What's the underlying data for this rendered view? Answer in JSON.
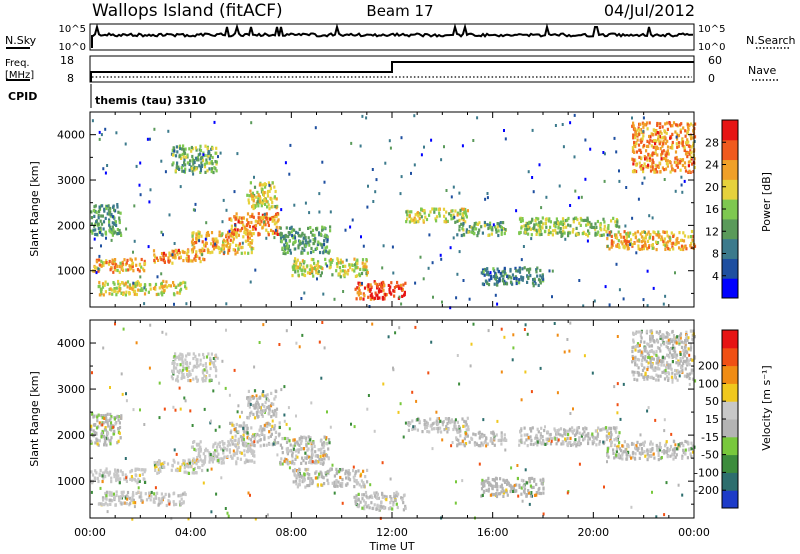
{
  "header": {
    "station": "Wallops Island (fitACF)",
    "beam": "Beam 17",
    "date": "04/Jul/2012"
  },
  "top_panels": {
    "nsky_label": "N.Sky",
    "nsky_ticks": [
      "10^5",
      "10^0"
    ],
    "nsearch_label": "N.Search",
    "nsearch_ticks": [
      "10^5",
      "10^0"
    ],
    "freq_label_1": "Freq.",
    "freq_label_2": "[MHz]",
    "freq_ticks": [
      "18",
      "8"
    ],
    "nave_label": "Nave",
    "nave_ticks": [
      "60",
      "0"
    ],
    "cpid_label": "CPID",
    "cpid_value": "themis (tau) 3310"
  },
  "colors": {
    "power_scale": [
      "#0000ff",
      "#1e4fa0",
      "#3c7a8c",
      "#5a9a5a",
      "#7ec850",
      "#e6d23c",
      "#f0a028",
      "#f05a1e",
      "#e61414"
    ],
    "velocity_scale": [
      "#1e3cc8",
      "#2d6e6e",
      "#3c8c3c",
      "#78c83c",
      "#b4b4b4",
      "#c8c8c8",
      "#f0c81e",
      "#f08c14",
      "#f05014",
      "#e61414"
    ]
  },
  "chart_data": [
    {
      "type": "heatmap",
      "name": "power",
      "ylabel": "Slant Range [km]",
      "yticks": [
        "1000",
        "2000",
        "3000",
        "4000"
      ],
      "ylim": [
        200,
        4500
      ],
      "xlim": [
        0,
        24
      ],
      "colorbar_label": "Power [dB]",
      "colorbar_ticks": [
        "4",
        "8",
        "12",
        "16",
        "20",
        "24",
        "28"
      ],
      "colorbar_range": [
        0,
        32
      ],
      "bands": [
        {
          "t0": 0.0,
          "t1": 2.2,
          "r0": 1000,
          "r1": 1300,
          "v": 22
        },
        {
          "t0": 0.3,
          "t1": 3.8,
          "r0": 500,
          "r1": 800,
          "v": 20
        },
        {
          "t0": 0.0,
          "t1": 1.2,
          "r0": 1800,
          "r1": 2500,
          "v": 12
        },
        {
          "t0": 2.5,
          "t1": 4.5,
          "r0": 1200,
          "r1": 1500,
          "v": 24
        },
        {
          "t0": 4.0,
          "t1": 6.5,
          "r0": 1400,
          "r1": 1900,
          "v": 22
        },
        {
          "t0": 5.5,
          "t1": 7.5,
          "r0": 1800,
          "r1": 2300,
          "v": 24
        },
        {
          "t0": 6.2,
          "t1": 7.4,
          "r0": 2400,
          "r1": 3000,
          "v": 18
        },
        {
          "t0": 3.2,
          "t1": 5.0,
          "r0": 3200,
          "r1": 3800,
          "v": 14
        },
        {
          "t0": 7.5,
          "t1": 9.5,
          "r0": 1400,
          "r1": 2000,
          "v": 12
        },
        {
          "t0": 8.0,
          "t1": 11.0,
          "r0": 900,
          "r1": 1300,
          "v": 18
        },
        {
          "t0": 10.5,
          "t1": 12.5,
          "r0": 400,
          "r1": 800,
          "v": 28
        },
        {
          "t0": 12.5,
          "t1": 15.0,
          "r0": 2100,
          "r1": 2400,
          "v": 18
        },
        {
          "t0": 14.5,
          "t1": 16.5,
          "r0": 1800,
          "r1": 2100,
          "v": 14
        },
        {
          "t0": 15.5,
          "t1": 18.0,
          "r0": 700,
          "r1": 1100,
          "v": 10
        },
        {
          "t0": 17.0,
          "t1": 21.0,
          "r0": 1800,
          "r1": 2200,
          "v": 16
        },
        {
          "t0": 20.5,
          "t1": 24.0,
          "r0": 1500,
          "r1": 1900,
          "v": 22
        },
        {
          "t0": 21.5,
          "t1": 24.0,
          "r0": 3200,
          "r1": 4300,
          "v": 24
        }
      ]
    },
    {
      "type": "heatmap",
      "name": "velocity",
      "ylabel": "Slant Range [km]",
      "yticks": [
        "1000",
        "2000",
        "3000",
        "4000"
      ],
      "ylim": [
        200,
        4500
      ],
      "xlim": [
        0,
        24
      ],
      "xticks": [
        "00:00",
        "04:00",
        "08:00",
        "12:00",
        "16:00",
        "20:00",
        "00:00"
      ],
      "xlabel": "Time UT",
      "colorbar_label": "Velocity [m s⁻¹]",
      "colorbar_ticks": [
        "-200",
        "-100",
        "-50",
        "-15",
        "15",
        "50",
        "100",
        "200"
      ],
      "colorbar_range": [
        -250,
        250
      ],
      "bands": [
        {
          "t0": 0.0,
          "t1": 2.2,
          "r0": 1000,
          "r1": 1300,
          "v": 30
        },
        {
          "t0": 0.3,
          "t1": 3.8,
          "r0": 500,
          "r1": 800,
          "v": 10
        },
        {
          "t0": 0.0,
          "t1": 1.2,
          "r0": 1800,
          "r1": 2500,
          "v": -40
        },
        {
          "t0": 2.5,
          "t1": 4.5,
          "r0": 1200,
          "r1": 1500,
          "v": 40
        },
        {
          "t0": 4.0,
          "t1": 6.5,
          "r0": 1400,
          "r1": 1900,
          "v": 20
        },
        {
          "t0": 5.5,
          "t1": 7.5,
          "r0": 1800,
          "r1": 2300,
          "v": 0
        },
        {
          "t0": 6.2,
          "t1": 7.4,
          "r0": 2400,
          "r1": 3000,
          "v": 0
        },
        {
          "t0": 3.2,
          "t1": 5.0,
          "r0": 3200,
          "r1": 3800,
          "v": 30
        },
        {
          "t0": 7.5,
          "t1": 9.5,
          "r0": 1400,
          "r1": 2000,
          "v": 0
        },
        {
          "t0": 8.0,
          "t1": 11.0,
          "r0": 900,
          "r1": 1300,
          "v": 0
        },
        {
          "t0": 10.5,
          "t1": 12.5,
          "r0": 400,
          "r1": 800,
          "v": 0
        },
        {
          "t0": 12.5,
          "t1": 15.0,
          "r0": 2100,
          "r1": 2400,
          "v": 0
        },
        {
          "t0": 14.5,
          "t1": 16.5,
          "r0": 1800,
          "r1": 2100,
          "v": 0
        },
        {
          "t0": 15.5,
          "t1": 18.0,
          "r0": 700,
          "r1": 1100,
          "v": -30
        },
        {
          "t0": 17.0,
          "t1": 21.0,
          "r0": 1800,
          "r1": 2200,
          "v": 0
        },
        {
          "t0": 20.5,
          "t1": 24.0,
          "r0": 1500,
          "r1": 1900,
          "v": 0
        },
        {
          "t0": 21.5,
          "t1": 24.0,
          "r0": 3200,
          "r1": 4300,
          "v": 0
        }
      ]
    }
  ]
}
